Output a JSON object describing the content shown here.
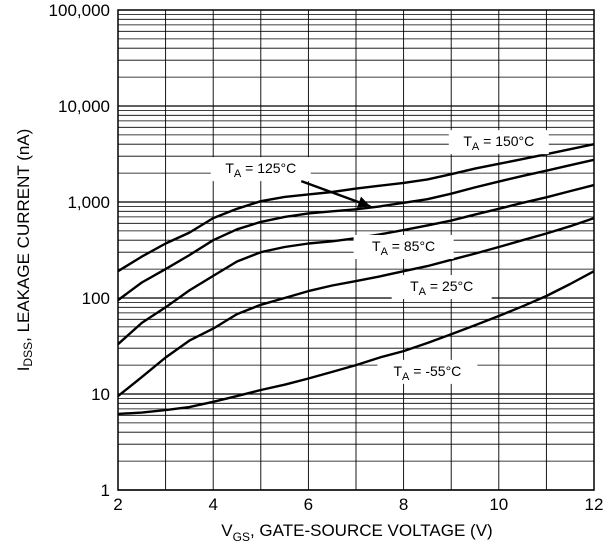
{
  "chart_data": {
    "type": "line",
    "title": "",
    "xlabel": {
      "main": "V",
      "sub": "GS",
      "rest": ", GATE-SOURCE VOLTAGE (V)"
    },
    "ylabel": {
      "main": "I",
      "sub": "DSS",
      "rest": ", LEAKAGE CURRENT (nA)"
    },
    "xlim": [
      2,
      12
    ],
    "ylim": [
      1,
      100000
    ],
    "yscale": "log",
    "grid": true,
    "x_ticks": [
      {
        "value": 2,
        "label": "2"
      },
      {
        "value": 4,
        "label": "4"
      },
      {
        "value": 6,
        "label": "6"
      },
      {
        "value": 8,
        "label": "8"
      },
      {
        "value": 10,
        "label": "10"
      },
      {
        "value": 12,
        "label": "12"
      }
    ],
    "y_ticks": [
      {
        "value": 1,
        "label": "1"
      },
      {
        "value": 10,
        "label": "10"
      },
      {
        "value": 100,
        "label": "100"
      },
      {
        "value": 1000,
        "label": "1,000"
      },
      {
        "value": 10000,
        "label": "10,000"
      },
      {
        "value": 100000,
        "label": "100,000"
      }
    ],
    "series": [
      {
        "name": {
          "main": "T",
          "sub": "A",
          "rest": " = 150°C"
        },
        "x": [
          2,
          2.5,
          3,
          3.5,
          4,
          4.5,
          5,
          5.5,
          6,
          6.5,
          7,
          7.5,
          8,
          8.5,
          9,
          9.5,
          10,
          10.5,
          11,
          11.5,
          12
        ],
        "y": [
          190,
          270,
          370,
          480,
          680,
          850,
          1020,
          1130,
          1200,
          1270,
          1380,
          1480,
          1580,
          1720,
          1950,
          2230,
          2500,
          2800,
          3150,
          3550,
          4000
        ]
      },
      {
        "name": {
          "main": "T",
          "sub": "A",
          "rest": " = 125°C"
        },
        "x": [
          2,
          2.5,
          3,
          3.5,
          4,
          4.5,
          5,
          5.5,
          6,
          6.5,
          7,
          7.5,
          8,
          8.5,
          9,
          9.5,
          10,
          10.5,
          11,
          11.5,
          12
        ],
        "y": [
          95,
          145,
          200,
          280,
          400,
          520,
          620,
          700,
          760,
          800,
          840,
          900,
          980,
          1070,
          1220,
          1420,
          1630,
          1870,
          2120,
          2420,
          2750
        ]
      },
      {
        "name": {
          "main": "T",
          "sub": "A",
          "rest": " = 85°C"
        },
        "x": [
          2,
          2.5,
          3,
          3.5,
          4,
          4.5,
          5,
          5.5,
          6,
          6.5,
          7,
          7.5,
          8,
          8.5,
          9,
          9.5,
          10,
          10.5,
          11,
          11.5,
          12
        ],
        "y": [
          33,
          55,
          80,
          120,
          170,
          240,
          300,
          340,
          370,
          390,
          420,
          460,
          510,
          570,
          640,
          740,
          850,
          980,
          1120,
          1300,
          1500
        ]
      },
      {
        "name": {
          "main": "T",
          "sub": "A",
          "rest": " = 25°C"
        },
        "x": [
          2,
          2.5,
          3,
          3.5,
          4,
          4.5,
          5,
          5.5,
          6,
          6.5,
          7,
          7.5,
          8,
          8.5,
          9,
          9.5,
          10,
          10.5,
          11,
          11.5,
          12
        ],
        "y": [
          9.5,
          15,
          24,
          36,
          48,
          68,
          85,
          100,
          118,
          135,
          150,
          168,
          190,
          215,
          250,
          290,
          340,
          400,
          470,
          560,
          680
        ]
      },
      {
        "name": {
          "main": "T",
          "sub": "A",
          "rest": " = -55°C"
        },
        "x": [
          2,
          2.5,
          3,
          3.5,
          4,
          4.5,
          5,
          5.5,
          6,
          6.5,
          7,
          7.5,
          8,
          8.5,
          9,
          9.5,
          10,
          10.5,
          11,
          11.5,
          12
        ],
        "y": [
          6.2,
          6.4,
          6.8,
          7.3,
          8.3,
          9.5,
          11,
          12.5,
          14.5,
          17,
          20,
          24,
          28,
          34,
          42,
          52,
          65,
          82,
          105,
          140,
          190
        ]
      }
    ]
  }
}
